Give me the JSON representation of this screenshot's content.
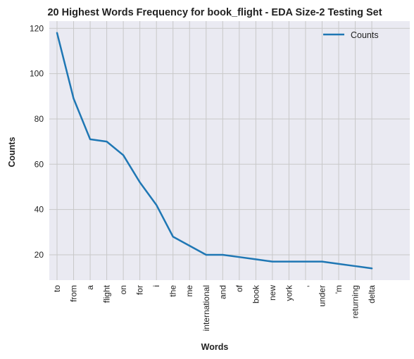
{
  "chart_data": {
    "type": "line",
    "title": "20 Highest Words Frequency for book_flight - EDA Size-2 Testing Set",
    "xlabel": "Words",
    "ylabel": "Counts",
    "categories": [
      "to",
      "from",
      "a",
      "flight",
      "on",
      "for",
      "i",
      "the",
      "me",
      "international",
      "and",
      "of",
      "book",
      "new",
      "york",
      ",",
      "under",
      "'m",
      "returning",
      "delta"
    ],
    "series": [
      {
        "name": "Counts",
        "values": [
          118,
          89,
          71,
          70,
          64,
          52,
          42,
          28,
          24,
          20,
          20,
          19,
          18,
          17,
          17,
          17,
          17,
          16,
          15,
          14
        ],
        "color": "#1f77b4"
      }
    ],
    "yticks": [
      20,
      40,
      60,
      80,
      100,
      120
    ],
    "ylim": [
      8.8,
      123.2
    ],
    "grid": true,
    "legend": "top-right",
    "colors": {
      "background": "#eaeaf2",
      "grid": "#c8c8c8",
      "line": "#1f77b4"
    }
  }
}
